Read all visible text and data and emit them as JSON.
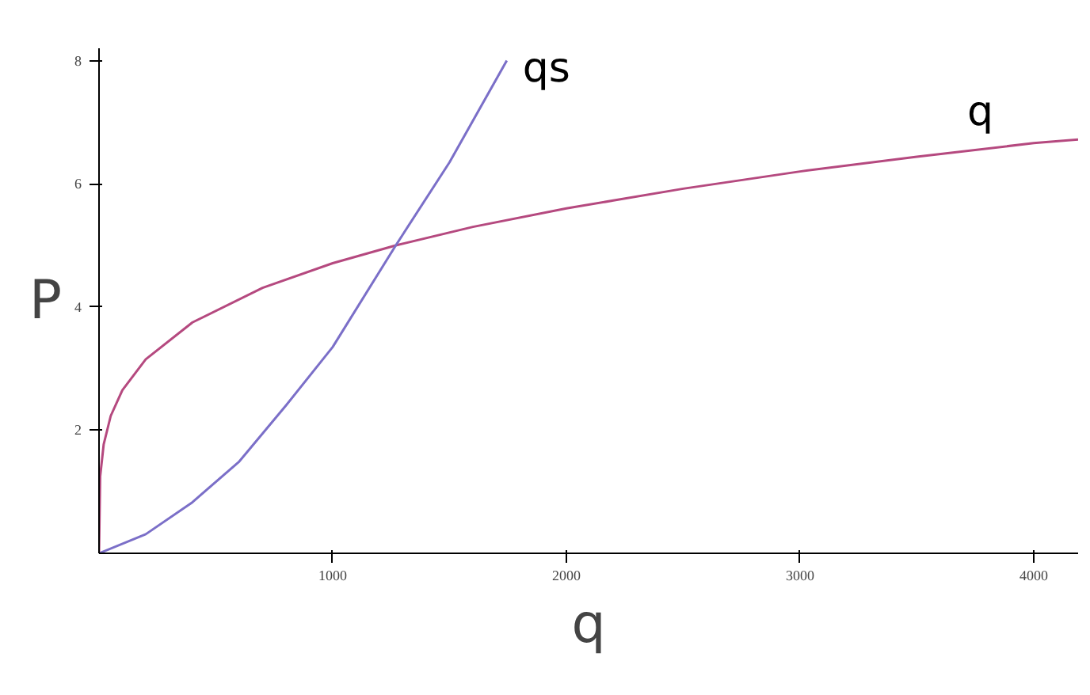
{
  "chart_data": {
    "type": "line",
    "xlabel": "q",
    "ylabel": "P",
    "xlim": [
      0,
      4190
    ],
    "ylim": [
      0,
      8.2
    ],
    "xticks": [
      1000,
      2000,
      3000,
      4000
    ],
    "yticks": [
      2,
      4,
      6,
      8
    ],
    "grid": false,
    "legend": false,
    "marker": "none",
    "line_style": "solid",
    "series": [
      {
        "name": "q",
        "color": "#b5497f",
        "x": [
          0,
          5,
          20,
          50,
          100,
          200,
          400,
          700,
          1000,
          1270,
          1600,
          2000,
          2500,
          3000,
          3500,
          4000,
          4190
        ],
        "values": [
          0,
          1.25,
          1.77,
          2.23,
          2.65,
          3.15,
          3.75,
          4.31,
          4.71,
          5.0,
          5.3,
          5.6,
          5.92,
          6.2,
          6.44,
          6.66,
          6.72
        ]
      },
      {
        "name": "qs",
        "color": "#7b6fc8",
        "x": [
          0,
          200,
          400,
          600,
          800,
          1000,
          1270,
          1500,
          1745
        ],
        "values": [
          0,
          0.31,
          0.83,
          1.49,
          2.4,
          3.35,
          5.0,
          6.35,
          8.0
        ]
      }
    ]
  }
}
